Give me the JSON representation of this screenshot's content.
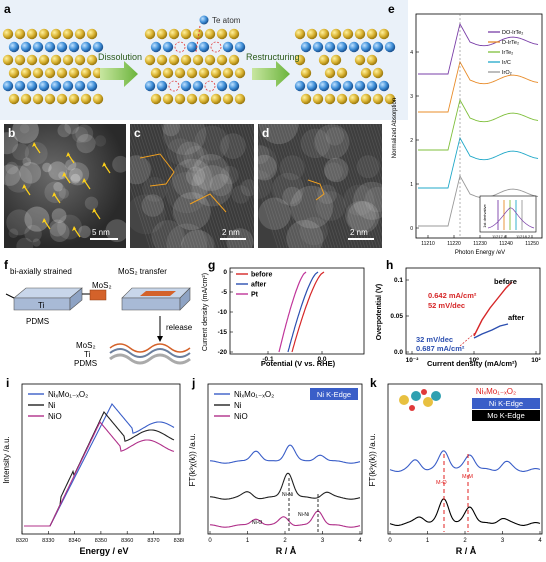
{
  "panels": {
    "a": {
      "label": "a",
      "atom_label": "Te atom",
      "step1": "Dissolution",
      "step2": "Restructuring"
    },
    "b": {
      "label": "b",
      "scale": "5 nm"
    },
    "c": {
      "label": "c",
      "scale": "2 nm"
    },
    "d": {
      "label": "d",
      "scale": "2 nm"
    },
    "e": {
      "label": "e",
      "ylabel": "Normalized Absorption",
      "xlabel": "Photon Energy /eV",
      "legend": [
        "DO-IrTe₂",
        "D-IrTe₂",
        "IrTe₂",
        "Ir/C",
        "IrO₂"
      ],
      "xticks": [
        "11210",
        "11220",
        "11230",
        "11240",
        "11250"
      ],
      "yticks": [
        "0",
        "1",
        "2",
        "3",
        "4"
      ],
      "inset_xticks": [
        "11217.8",
        "11218.2"
      ],
      "inset_ylabel": "1st derivative",
      "colors": [
        "#7a3fa8",
        "#e88c2a",
        "#7fbf3b",
        "#20a8c8",
        "#999999"
      ]
    },
    "f": {
      "label": "f",
      "title1": "bi-axially strained",
      "title2": "MoS₂ transfer",
      "mos2": "MoS₂",
      "ti": "Ti",
      "pdms": "PDMS",
      "release": "release",
      "stack": [
        "MoS₂",
        "Ti",
        "PDMS"
      ]
    },
    "g": {
      "label": "g",
      "ylabel": "Current density (mA/cm²)",
      "xlabel": "Potential (V vs. RHE)",
      "legend": [
        "before",
        "after",
        "Pt"
      ],
      "xticks": [
        "-0.1",
        "0.0"
      ],
      "yticks": [
        "0",
        "-5",
        "-10",
        "-15",
        "-20"
      ],
      "colors": [
        "#d62728",
        "#2c4fb0",
        "#c0359a"
      ]
    },
    "h": {
      "label": "h",
      "ylabel": "Overpotential (V)",
      "xlabel": "Current density (mA/cm²)",
      "xticks": [
        "10⁻²",
        "10⁰",
        "10²"
      ],
      "yticks": [
        "0.0",
        "0.05",
        "0.1"
      ],
      "before": "before",
      "after": "after",
      "before_j": "0.642 mA/cm²",
      "before_slope": "52 mV/dec",
      "after_slope": "32 mV/dec",
      "after_j": "0.687 mA/cm²"
    },
    "i": {
      "label": "i",
      "ylabel": "Intensity /a.u.",
      "xlabel": "Energy / eV",
      "legend": [
        "NiₓMo₁₋ₓO₂",
        "Ni",
        "NiO"
      ],
      "xticks": [
        "8320",
        "8330",
        "8340",
        "8350",
        "8360",
        "8370",
        "8380"
      ]
    },
    "j": {
      "label": "j",
      "ylabel": "FT(k³χ(k)) /a.u.",
      "xlabel": "R / Å",
      "legend": [
        "NiₓMo₁₋ₓO₂",
        "Ni",
        "NiO"
      ],
      "edge": "Ni K-Edge",
      "xticks": [
        "0",
        "1",
        "2",
        "3",
        "4"
      ],
      "peaks": [
        "Ni-Ni",
        "Ni-O",
        "Ni-Ni"
      ]
    },
    "k": {
      "label": "k",
      "ylabel": "FT(k³χ(k)) /a.u.",
      "xlabel": "R / Å",
      "title": "NiₓMo₁₋ₓO₂",
      "edge1": "Ni K-Edge",
      "edge2": "Mo K-Edge",
      "xticks": [
        "0",
        "1",
        "2",
        "3",
        "4"
      ],
      "peak1": "M-O",
      "peak2": "M-M"
    }
  }
}
